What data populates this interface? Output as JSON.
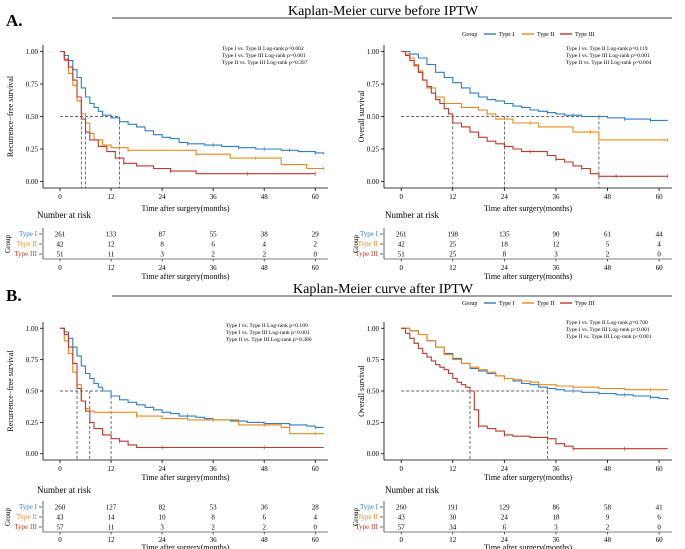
{
  "figure": {
    "panel_a_label": "A.",
    "panel_b_label": "B.",
    "title_a": "Kaplan-Meier curve before IPTW",
    "title_b": "Kaplan-Meier curve after IPTW",
    "legend_title": "Group",
    "series_labels": [
      "Type I",
      "Type II",
      "Type III"
    ],
    "series_colors": [
      "#2E7EC7",
      "#E8891C",
      "#C0372E"
    ],
    "number_at_risk_label": "Number at risk",
    "group_axis_label": "Group"
  },
  "chart_data": [
    {
      "id": "A-left",
      "type": "line",
      "xlabel": "Time after surgery(months)",
      "ylabel": "Recurrence−free survival",
      "xlim": [
        -4,
        63
      ],
      "ylim": [
        -0.05,
        1.05
      ],
      "xticks": [
        0,
        12,
        24,
        36,
        48,
        60
      ],
      "yticks": [
        0.0,
        0.25,
        0.5,
        0.75,
        1.0
      ],
      "ytick_labels": [
        "0.00",
        "0.25",
        "0.50",
        "0.75",
        "1.00"
      ],
      "pvalues": [
        "Type I vs. Type II Log-rank p=0.002",
        "Type I vs. Type III Log-rank p=0.001",
        "Type II vs. Type III Log-rank p=0.397"
      ],
      "median_lines": [
        5,
        6,
        14
      ],
      "series": [
        {
          "name": "Type I",
          "color": "#2E7EC7",
          "x": [
            0,
            1,
            2,
            3,
            4,
            5,
            6,
            7,
            8,
            9,
            10,
            12,
            14,
            16,
            18,
            20,
            22,
            24,
            26,
            28,
            30,
            32,
            34,
            36,
            38,
            40,
            42,
            44,
            46,
            48,
            50,
            52,
            54,
            56,
            58,
            60,
            62
          ],
          "y": [
            1,
            0.97,
            0.93,
            0.86,
            0.8,
            0.72,
            0.65,
            0.6,
            0.57,
            0.54,
            0.51,
            0.49,
            0.46,
            0.44,
            0.42,
            0.39,
            0.36,
            0.34,
            0.33,
            0.3,
            0.29,
            0.29,
            0.28,
            0.28,
            0.27,
            0.27,
            0.26,
            0.26,
            0.25,
            0.25,
            0.25,
            0.24,
            0.24,
            0.23,
            0.23,
            0.22,
            0.21
          ]
        },
        {
          "name": "Type II",
          "color": "#E8891C",
          "x": [
            0,
            1,
            2,
            3,
            4,
            5,
            6,
            7,
            8,
            10,
            12,
            16,
            22,
            28,
            32,
            34,
            40,
            46,
            52,
            58,
            62
          ],
          "y": [
            1,
            0.93,
            0.83,
            0.74,
            0.62,
            0.52,
            0.45,
            0.37,
            0.32,
            0.28,
            0.26,
            0.24,
            0.24,
            0.24,
            0.21,
            0.21,
            0.18,
            0.18,
            0.13,
            0.1,
            0.1
          ]
        },
        {
          "name": "Type III",
          "color": "#C0372E",
          "x": [
            0,
            1,
            2,
            3,
            4,
            5,
            6,
            7,
            9,
            11,
            13,
            15,
            18,
            22,
            26,
            32,
            38,
            44,
            50,
            56,
            60
          ],
          "y": [
            1,
            0.94,
            0.88,
            0.78,
            0.65,
            0.48,
            0.38,
            0.32,
            0.27,
            0.23,
            0.18,
            0.14,
            0.12,
            0.1,
            0.08,
            0.06,
            0.06,
            0.06,
            0.06,
            0.06,
            0.06
          ]
        }
      ]
    },
    {
      "id": "A-right",
      "type": "line",
      "xlabel": "Time after surgery(months)",
      "ylabel": "Overall survival",
      "xlim": [
        -4,
        63
      ],
      "ylim": [
        -0.05,
        1.05
      ],
      "xticks": [
        0,
        12,
        24,
        36,
        48,
        60
      ],
      "yticks": [
        0.0,
        0.25,
        0.5,
        0.75,
        1.0
      ],
      "ytick_labels": [
        "0.00",
        "0.25",
        "0.50",
        "0.75",
        "1.00"
      ],
      "pvalues": [
        "Type I vs. Type II Log-rank p=0.119",
        "Type I vs. Type III Log-rank p=0.001",
        "Type II vs. Type III Log-rank p=0.004"
      ],
      "median_lines": [
        12,
        24,
        46
      ],
      "series": [
        {
          "name": "Type I",
          "color": "#2E7EC7",
          "x": [
            0,
            2,
            4,
            6,
            8,
            10,
            12,
            14,
            16,
            18,
            20,
            22,
            24,
            26,
            28,
            30,
            32,
            34,
            36,
            38,
            40,
            42,
            44,
            46,
            48,
            50,
            52,
            54,
            56,
            58,
            60,
            62
          ],
          "y": [
            1,
            0.98,
            0.95,
            0.9,
            0.84,
            0.8,
            0.76,
            0.72,
            0.68,
            0.65,
            0.63,
            0.62,
            0.6,
            0.58,
            0.57,
            0.55,
            0.54,
            0.53,
            0.52,
            0.51,
            0.51,
            0.5,
            0.5,
            0.5,
            0.49,
            0.49,
            0.48,
            0.48,
            0.48,
            0.47,
            0.47,
            0.47
          ]
        },
        {
          "name": "Type II",
          "color": "#E8891C",
          "x": [
            0,
            1,
            2,
            3,
            4,
            5,
            6,
            8,
            10,
            14,
            18,
            20,
            22,
            26,
            30,
            32,
            40,
            44,
            46,
            50,
            62
          ],
          "y": [
            1,
            0.98,
            0.95,
            0.9,
            0.85,
            0.78,
            0.72,
            0.65,
            0.6,
            0.57,
            0.55,
            0.52,
            0.48,
            0.45,
            0.45,
            0.42,
            0.38,
            0.38,
            0.32,
            0.32,
            0.32
          ]
        },
        {
          "name": "Type III",
          "color": "#C0372E",
          "x": [
            0,
            1,
            2,
            3,
            4,
            5,
            6,
            7,
            8,
            9,
            10,
            11,
            12,
            14,
            16,
            18,
            20,
            22,
            24,
            26,
            28,
            30,
            32,
            34,
            36,
            38,
            40,
            42,
            44,
            46,
            50,
            54,
            60,
            62
          ],
          "y": [
            1,
            0.97,
            0.93,
            0.89,
            0.84,
            0.78,
            0.73,
            0.68,
            0.63,
            0.6,
            0.56,
            0.52,
            0.45,
            0.42,
            0.38,
            0.34,
            0.31,
            0.29,
            0.27,
            0.25,
            0.23,
            0.23,
            0.23,
            0.2,
            0.17,
            0.15,
            0.12,
            0.1,
            0.06,
            0.04,
            0.04,
            0.04,
            0.04,
            0.04
          ]
        }
      ]
    },
    {
      "id": "B-left",
      "type": "line",
      "xlabel": "Time after surgery(months)",
      "ylabel": "Recurrence−free survival",
      "xlim": [
        -4,
        63
      ],
      "ylim": [
        -0.05,
        1.05
      ],
      "xticks": [
        0,
        12,
        24,
        36,
        48,
        60
      ],
      "yticks": [
        0.0,
        0.25,
        0.5,
        0.75,
        1.0
      ],
      "ytick_labels": [
        "0.00",
        "0.25",
        "0.50",
        "0.75",
        "1.00"
      ],
      "pvalues": [
        "Type I vs. Type II Log-rank p=0.109",
        "Type I vs. Type III Log-rank p<0.001",
        "Type II vs. Type III Log-rank p=0.300"
      ],
      "median_lines": [
        4,
        7,
        12
      ],
      "series": [
        {
          "name": "Type I",
          "color": "#2E7EC7",
          "x": [
            0,
            1,
            2,
            3,
            4,
            5,
            6,
            7,
            8,
            9,
            10,
            12,
            14,
            16,
            18,
            20,
            22,
            24,
            26,
            28,
            30,
            32,
            34,
            36,
            38,
            40,
            42,
            44,
            46,
            48,
            50,
            52,
            54,
            56,
            58,
            60,
            62
          ],
          "y": [
            1,
            0.97,
            0.92,
            0.85,
            0.78,
            0.7,
            0.64,
            0.6,
            0.56,
            0.53,
            0.5,
            0.46,
            0.43,
            0.41,
            0.39,
            0.37,
            0.35,
            0.33,
            0.32,
            0.3,
            0.3,
            0.29,
            0.28,
            0.27,
            0.27,
            0.26,
            0.26,
            0.25,
            0.25,
            0.24,
            0.24,
            0.24,
            0.23,
            0.23,
            0.22,
            0.21,
            0.21
          ]
        },
        {
          "name": "Type II",
          "color": "#E8891C",
          "x": [
            0,
            1,
            2,
            3,
            4,
            5,
            6,
            7,
            8,
            10,
            12,
            16,
            18,
            24,
            30,
            36,
            40,
            42,
            48,
            52,
            54,
            60,
            62
          ],
          "y": [
            1,
            0.9,
            0.8,
            0.65,
            0.55,
            0.42,
            0.36,
            0.34,
            0.33,
            0.33,
            0.33,
            0.33,
            0.3,
            0.28,
            0.27,
            0.27,
            0.27,
            0.23,
            0.23,
            0.21,
            0.16,
            0.16,
            0.16
          ]
        },
        {
          "name": "Type III",
          "color": "#C0372E",
          "x": [
            0,
            1,
            2,
            3,
            4,
            5,
            6,
            7,
            8,
            10,
            12,
            14,
            16,
            18,
            24,
            32,
            40,
            48,
            56,
            62
          ],
          "y": [
            1,
            0.95,
            0.85,
            0.72,
            0.52,
            0.42,
            0.34,
            0.25,
            0.2,
            0.15,
            0.12,
            0.1,
            0.07,
            0.05,
            0.05,
            0.05,
            0.05,
            0.05,
            0.05,
            0.05
          ]
        }
      ]
    },
    {
      "id": "B-right",
      "type": "line",
      "xlabel": "Time after surgery(months)",
      "ylabel": "Overall survival",
      "xlim": [
        -4,
        63
      ],
      "ylim": [
        -0.05,
        1.05
      ],
      "xticks": [
        0,
        12,
        24,
        36,
        48,
        60
      ],
      "yticks": [
        0.0,
        0.25,
        0.5,
        0.75,
        1.0
      ],
      "ytick_labels": [
        "0.00",
        "0.25",
        "0.50",
        "0.75",
        "1.00"
      ],
      "pvalues": [
        "Type I vs. Type II Log-rank p=0.700",
        "Type I vs. Type III Log-rank p<0.001",
        "Type II vs. Type III Log-rank p<0.001"
      ],
      "median_lines": [
        16,
        34
      ],
      "series": [
        {
          "name": "Type I",
          "color": "#2E7EC7",
          "x": [
            0,
            2,
            4,
            6,
            8,
            10,
            12,
            14,
            16,
            18,
            20,
            22,
            24,
            26,
            28,
            30,
            32,
            34,
            36,
            38,
            40,
            42,
            44,
            46,
            48,
            50,
            52,
            54,
            56,
            58,
            60,
            62
          ],
          "y": [
            1,
            0.98,
            0.95,
            0.9,
            0.85,
            0.8,
            0.76,
            0.72,
            0.68,
            0.66,
            0.64,
            0.62,
            0.6,
            0.58,
            0.56,
            0.55,
            0.53,
            0.52,
            0.51,
            0.5,
            0.5,
            0.49,
            0.49,
            0.48,
            0.48,
            0.47,
            0.47,
            0.46,
            0.46,
            0.45,
            0.44,
            0.43
          ]
        },
        {
          "name": "Type II",
          "color": "#E8891C",
          "x": [
            0,
            2,
            4,
            6,
            8,
            10,
            12,
            14,
            16,
            18,
            20,
            22,
            24,
            26,
            28,
            30,
            32,
            36,
            40,
            46,
            52,
            58,
            62
          ],
          "y": [
            1,
            0.98,
            0.95,
            0.9,
            0.85,
            0.79,
            0.75,
            0.72,
            0.69,
            0.67,
            0.65,
            0.62,
            0.6,
            0.59,
            0.58,
            0.57,
            0.55,
            0.54,
            0.53,
            0.52,
            0.51,
            0.51,
            0.51
          ]
        },
        {
          "name": "Type III",
          "color": "#C0372E",
          "x": [
            0,
            1,
            2,
            3,
            4,
            5,
            6,
            7,
            8,
            9,
            10,
            11,
            12,
            13,
            14,
            15,
            16,
            17,
            18,
            20,
            22,
            24,
            26,
            30,
            34,
            36,
            38,
            40,
            44,
            48,
            52,
            56,
            62
          ],
          "y": [
            1,
            0.96,
            0.92,
            0.88,
            0.84,
            0.8,
            0.77,
            0.74,
            0.71,
            0.69,
            0.67,
            0.64,
            0.6,
            0.57,
            0.55,
            0.53,
            0.5,
            0.35,
            0.22,
            0.2,
            0.18,
            0.15,
            0.14,
            0.13,
            0.12,
            0.08,
            0.06,
            0.04,
            0.04,
            0.04,
            0.04,
            0.04,
            0.04
          ]
        }
      ]
    }
  ],
  "risk_tables": [
    {
      "id": "A-left",
      "rows": [
        [
          "261",
          "133",
          "87",
          "55",
          "38",
          "29"
        ],
        [
          "42",
          "12",
          "8",
          "6",
          "4",
          "2"
        ],
        [
          "51",
          "11",
          "3",
          "2",
          "2",
          "0"
        ]
      ]
    },
    {
      "id": "A-right",
      "rows": [
        [
          "261",
          "198",
          "135",
          "90",
          "61",
          "44"
        ],
        [
          "42",
          "25",
          "18",
          "12",
          "5",
          "4"
        ],
        [
          "51",
          "25",
          "8",
          "3",
          "2",
          "0"
        ]
      ]
    },
    {
      "id": "B-left",
      "rows": [
        [
          "260",
          "127",
          "82",
          "53",
          "36",
          "28"
        ],
        [
          "43",
          "14",
          "10",
          "8",
          "6",
          "4"
        ],
        [
          "57",
          "11",
          "3",
          "2",
          "2",
          "0"
        ]
      ]
    },
    {
      "id": "B-right",
      "rows": [
        [
          "260",
          "191",
          "129",
          "86",
          "58",
          "41"
        ],
        [
          "43",
          "30",
          "24",
          "18",
          "9",
          "6"
        ],
        [
          "57",
          "34",
          "6",
          "3",
          "2",
          "0"
        ]
      ]
    }
  ]
}
